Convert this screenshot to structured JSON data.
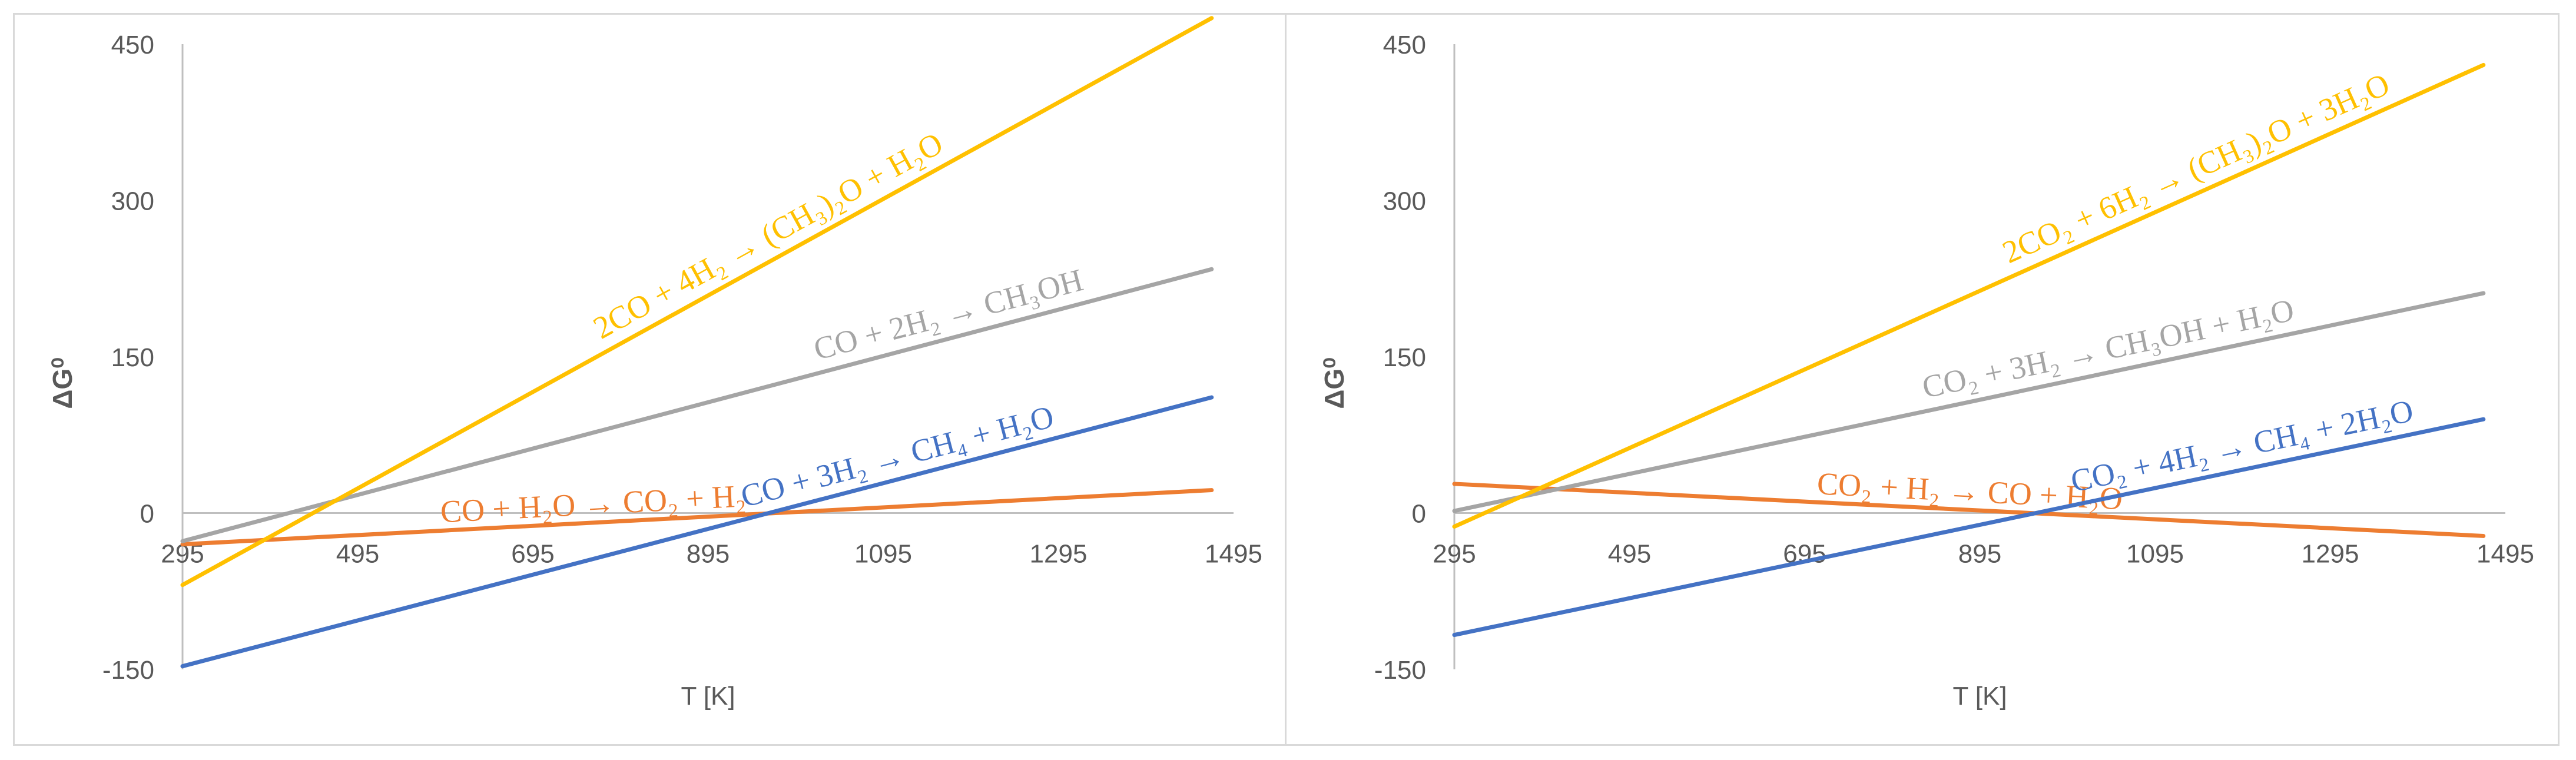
{
  "chart_data": [
    {
      "type": "line",
      "title": "",
      "xlabel": "T [K]",
      "ylabel": "ΔG⁰",
      "xlim": [
        295,
        1495
      ],
      "ylim": [
        -150,
        450
      ],
      "xticks": [
        "295",
        "495",
        "695",
        "895",
        "1095",
        "1295",
        "1495"
      ],
      "yticks": [
        "-150",
        "0",
        "150",
        "300",
        "450"
      ],
      "series": [
        {
          "name": "CO + H₂O → CO₂ + H₂",
          "color": "#ED7D31",
          "x": [
            295,
            1470
          ],
          "y": [
            -30,
            22
          ]
        },
        {
          "name": "CO + 3H₂ → CH₄ + H₂O",
          "color": "#4472C4",
          "x": [
            295,
            1470
          ],
          "y": [
            -147,
            111
          ]
        },
        {
          "name": "CO + 2H₂ → CH₃OH",
          "color": "#A5A5A5",
          "x": [
            295,
            1470
          ],
          "y": [
            -27,
            234
          ]
        },
        {
          "name": "2CO + 4H₂ → (CH₃)₂O + H₂O",
          "color": "#FFC000",
          "x": [
            295,
            1470
          ],
          "y": [
            -69,
            475
          ]
        }
      ]
    },
    {
      "type": "line",
      "title": "",
      "xlabel": "T [K]",
      "ylabel": "ΔG⁰",
      "xlim": [
        295,
        1495
      ],
      "ylim": [
        -150,
        450
      ],
      "xticks": [
        "295",
        "495",
        "695",
        "895",
        "1095",
        "1295",
        "1495"
      ],
      "yticks": [
        "-150",
        "0",
        "150",
        "300",
        "450"
      ],
      "series": [
        {
          "name": "CO₂ + H₂ → CO + H₂O",
          "color": "#ED7D31",
          "x": [
            295,
            1470
          ],
          "y": [
            28,
            -22
          ]
        },
        {
          "name": "CO₂ + 4H₂ → CH₄ + 2H₂O",
          "color": "#4472C4",
          "x": [
            295,
            1470
          ],
          "y": [
            -117,
            90
          ]
        },
        {
          "name": "CO₂ + 3H₂ → CH₃OH + H₂O",
          "color": "#A5A5A5",
          "x": [
            295,
            1470
          ],
          "y": [
            2,
            211
          ]
        },
        {
          "name": "2CO₂ + 6H₂ → (CH₃)₂O + 3H₂O",
          "color": "#FFC000",
          "x": [
            295,
            1470
          ],
          "y": [
            -13,
            430
          ]
        }
      ]
    }
  ]
}
